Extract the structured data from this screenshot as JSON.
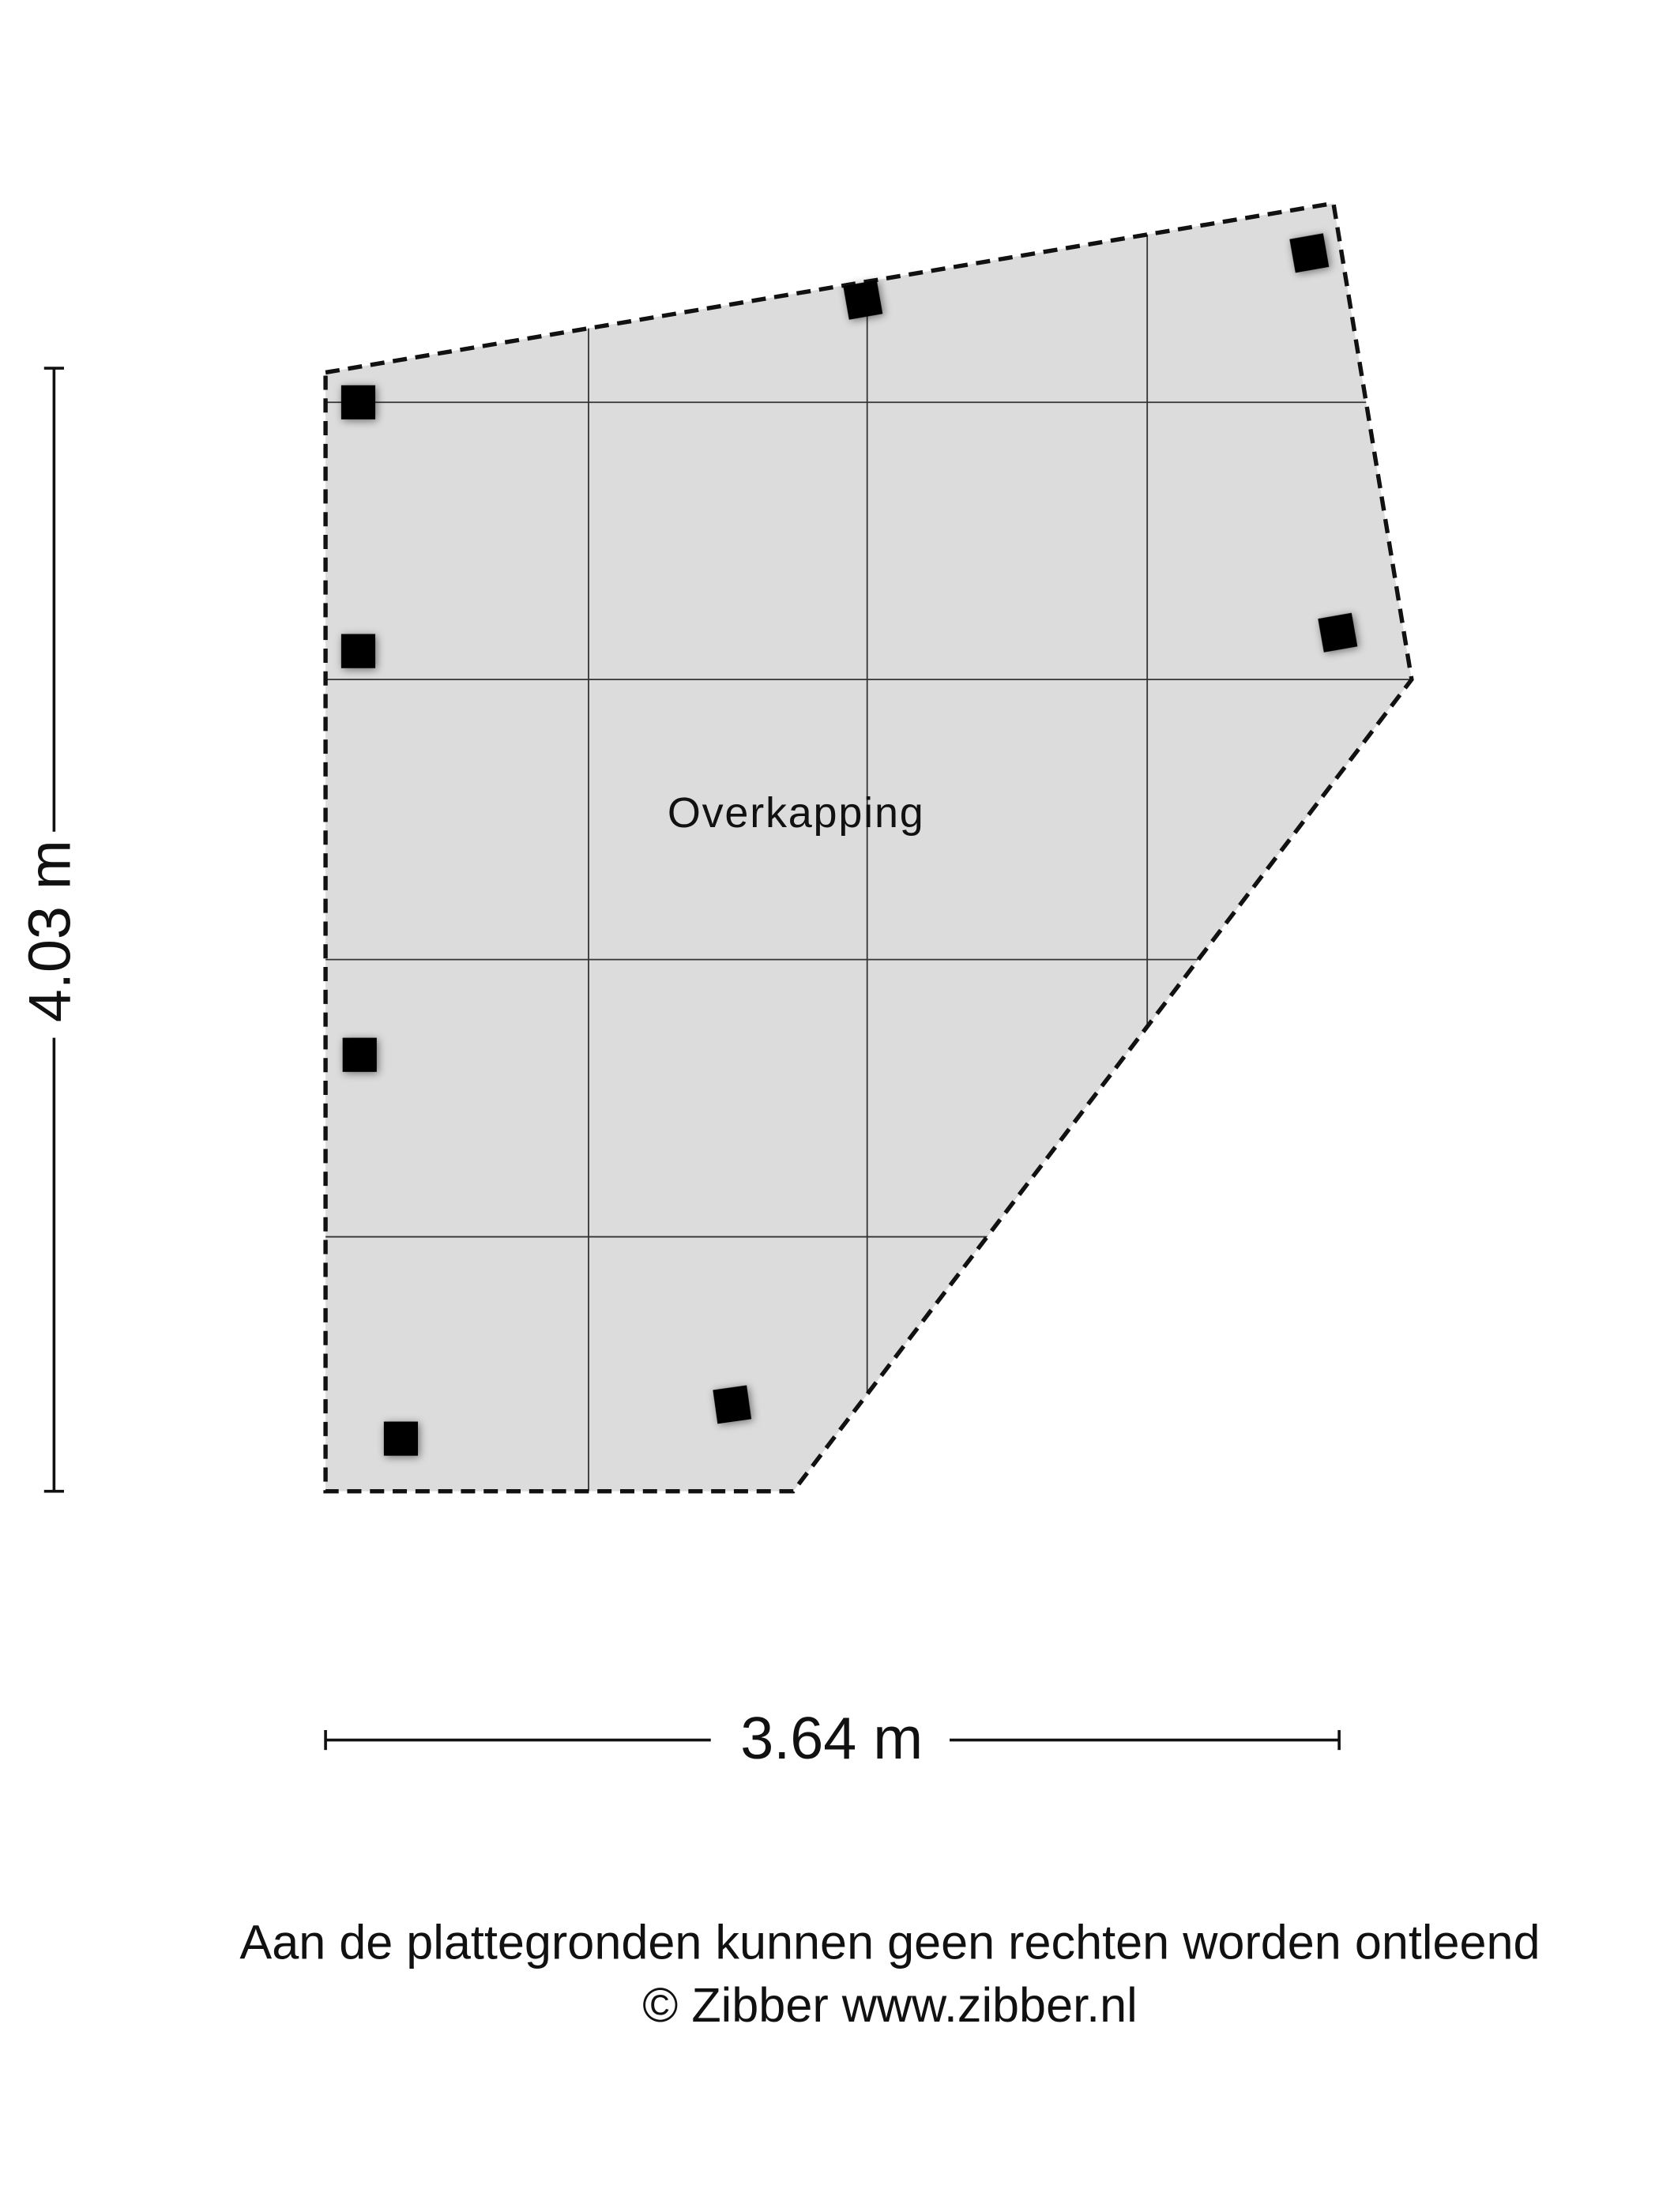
{
  "room": {
    "label": "Overkapping"
  },
  "dimensions": {
    "height": "4.03 m",
    "width": "3.64 m"
  },
  "footer": {
    "disclaimer": "Aan de plattegronden kunnen geen rechten worden ontleend",
    "copyright": "© Zibber www.zibber.nl"
  }
}
